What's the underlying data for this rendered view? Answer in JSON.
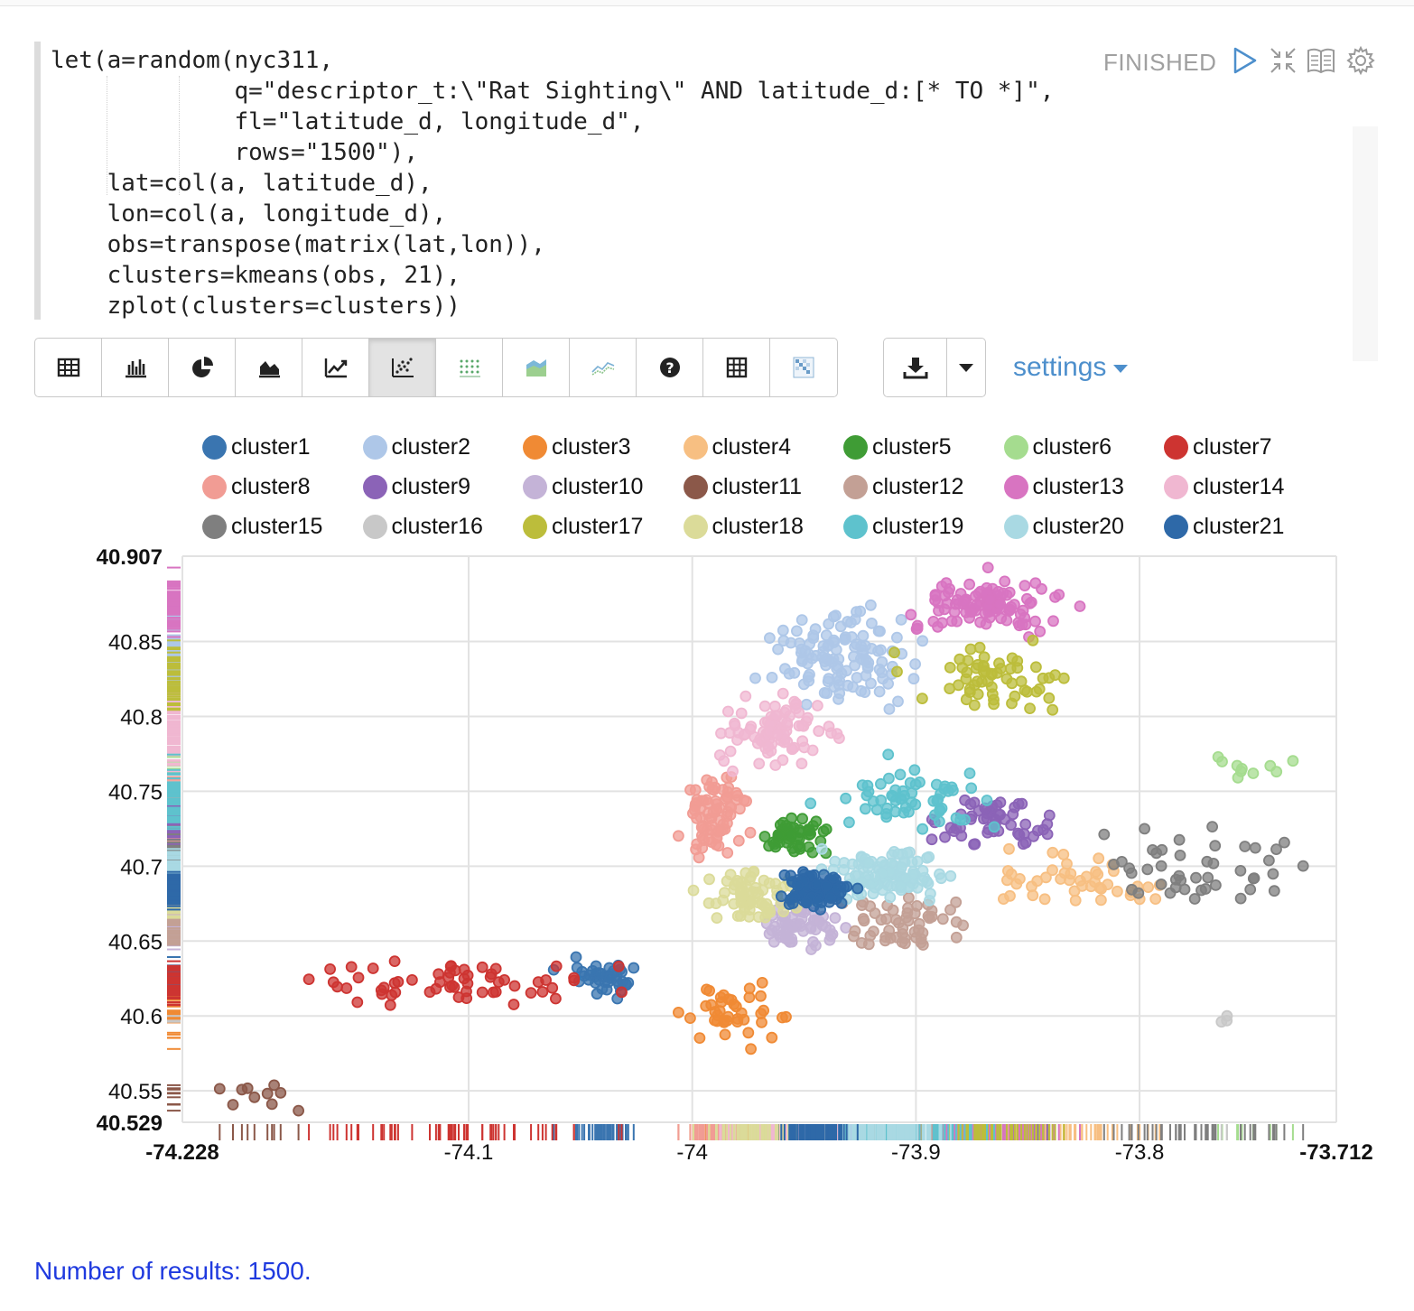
{
  "paragraph": {
    "status": "FINISHED",
    "code_lines": [
      "let(a=random(nyc311,",
      "             q=\"descriptor_t:\\\"Rat Sighting\\\" AND latitude_d:[* TO *]\",",
      "             fl=\"latitude_d, longitude_d\",",
      "             rows=\"1500\"),",
      "    lat=col(a, latitude_d),",
      "    lon=col(a, longitude_d),",
      "    obs=transpose(matrix(lat,lon)),",
      "    clusters=kmeans(obs, 21),",
      "    zplot(clusters=clusters))"
    ],
    "header_icons": [
      "run-icon",
      "collapse-icon",
      "book-icon",
      "gear-icon"
    ]
  },
  "toolbar": {
    "buttons": [
      {
        "icon": "table-icon"
      },
      {
        "icon": "bar-chart-icon"
      },
      {
        "icon": "pie-chart-icon"
      },
      {
        "icon": "area-chart-icon"
      },
      {
        "icon": "line-chart-icon"
      },
      {
        "icon": "scatter-chart-icon",
        "active": true
      },
      {
        "icon": "dot-grid-icon"
      },
      {
        "icon": "stacked-area-icon"
      },
      {
        "icon": "multi-line-icon"
      },
      {
        "icon": "help-icon"
      },
      {
        "icon": "grid-icon"
      },
      {
        "icon": "heatmap-icon"
      }
    ],
    "download_icon": "download-icon",
    "caret_icon": "caret-down-icon",
    "settings_label": "settings"
  },
  "chart_data": {
    "type": "scatter",
    "title": "",
    "xlabel": "",
    "ylabel": "",
    "xlim": [
      -74.228,
      -73.712
    ],
    "ylim": [
      40.529,
      40.907
    ],
    "x_ticks": [
      {
        "value": -74.228,
        "label": "-74.228",
        "bold": true
      },
      {
        "value": -74.1,
        "label": "-74.1"
      },
      {
        "value": -74.0,
        "label": "-74"
      },
      {
        "value": -73.9,
        "label": "-73.9"
      },
      {
        "value": -73.8,
        "label": "-73.8"
      },
      {
        "value": -73.712,
        "label": "-73.712",
        "bold": true
      }
    ],
    "y_ticks": [
      {
        "value": 40.907,
        "label": "40.907",
        "bold": true
      },
      {
        "value": 40.85,
        "label": "40.85"
      },
      {
        "value": 40.8,
        "label": "40.8"
      },
      {
        "value": 40.75,
        "label": "40.75"
      },
      {
        "value": 40.7,
        "label": "40.7"
      },
      {
        "value": 40.65,
        "label": "40.65"
      },
      {
        "value": 40.6,
        "label": "40.6"
      },
      {
        "value": 40.55,
        "label": "40.55"
      },
      {
        "value": 40.529,
        "label": "40.529",
        "bold": true
      }
    ],
    "grid": true,
    "legend_position": "top",
    "series": [
      {
        "name": "cluster1",
        "color": "#3a75b0",
        "center": [
          -74.04,
          40.625
        ],
        "spread": [
          0.012,
          0.009
        ],
        "n": 40
      },
      {
        "name": "cluster2",
        "color": "#aec7e8",
        "center": [
          -73.932,
          40.84
        ],
        "spread": [
          0.022,
          0.02
        ],
        "n": 120
      },
      {
        "name": "cluster3",
        "color": "#f08a34",
        "center": [
          -73.98,
          40.6
        ],
        "spread": [
          0.015,
          0.013
        ],
        "n": 40
      },
      {
        "name": "cluster4",
        "color": "#f7bf82",
        "center": [
          -73.828,
          40.69
        ],
        "spread": [
          0.03,
          0.012
        ],
        "n": 45
      },
      {
        "name": "cluster5",
        "color": "#3f9c35",
        "center": [
          -73.955,
          40.72
        ],
        "spread": [
          0.01,
          0.008
        ],
        "n": 50
      },
      {
        "name": "cluster6",
        "color": "#a5dc8f",
        "center": [
          -73.755,
          40.765
        ],
        "spread": [
          0.018,
          0.008
        ],
        "n": 10
      },
      {
        "name": "cluster7",
        "color": "#cd3431",
        "center": [
          -74.11,
          40.62
        ],
        "spread": [
          0.045,
          0.012
        ],
        "n": 60
      },
      {
        "name": "cluster8",
        "color": "#f19c94",
        "center": [
          -73.99,
          40.735
        ],
        "spread": [
          0.01,
          0.018
        ],
        "n": 80
      },
      {
        "name": "cluster9",
        "color": "#8b63b7",
        "center": [
          -73.865,
          40.73
        ],
        "spread": [
          0.016,
          0.013
        ],
        "n": 55
      },
      {
        "name": "cluster10",
        "color": "#c4b3d7",
        "center": [
          -73.95,
          40.66
        ],
        "spread": [
          0.012,
          0.012
        ],
        "n": 60
      },
      {
        "name": "cluster11",
        "color": "#8b5849",
        "center": [
          -74.195,
          40.545
        ],
        "spread": [
          0.018,
          0.01
        ],
        "n": 10
      },
      {
        "name": "cluster12",
        "color": "#c3a095",
        "center": [
          -73.905,
          40.66
        ],
        "spread": [
          0.02,
          0.014
        ],
        "n": 55
      },
      {
        "name": "cluster13",
        "color": "#d874c1",
        "center": [
          -73.87,
          40.875
        ],
        "spread": [
          0.024,
          0.012
        ],
        "n": 110
      },
      {
        "name": "cluster14",
        "color": "#f0b7d1",
        "center": [
          -73.96,
          40.79
        ],
        "spread": [
          0.018,
          0.015
        ],
        "n": 90
      },
      {
        "name": "cluster15",
        "color": "#7f7f7f",
        "center": [
          -73.77,
          40.7
        ],
        "spread": [
          0.03,
          0.018
        ],
        "n": 45
      },
      {
        "name": "cluster16",
        "color": "#c8c8c8",
        "center": [
          -73.765,
          40.598
        ],
        "spread": [
          0.006,
          0.002
        ],
        "n": 3
      },
      {
        "name": "cluster17",
        "color": "#bcbd3b",
        "center": [
          -73.865,
          40.825
        ],
        "spread": [
          0.026,
          0.015
        ],
        "n": 60
      },
      {
        "name": "cluster18",
        "color": "#dbdb99",
        "center": [
          -73.975,
          40.68
        ],
        "spread": [
          0.014,
          0.012
        ],
        "n": 70
      },
      {
        "name": "cluster19",
        "color": "#5ec2cd",
        "center": [
          -73.9,
          40.745
        ],
        "spread": [
          0.025,
          0.015
        ],
        "n": 60
      },
      {
        "name": "cluster20",
        "color": "#a9d9e3",
        "center": [
          -73.915,
          40.695
        ],
        "spread": [
          0.02,
          0.012
        ],
        "n": 110
      },
      {
        "name": "cluster21",
        "color": "#2e69a8",
        "center": [
          -73.945,
          40.685
        ],
        "spread": [
          0.01,
          0.008
        ],
        "n": 110
      }
    ]
  },
  "footer": {
    "results_text": "Number of results: 1500."
  }
}
